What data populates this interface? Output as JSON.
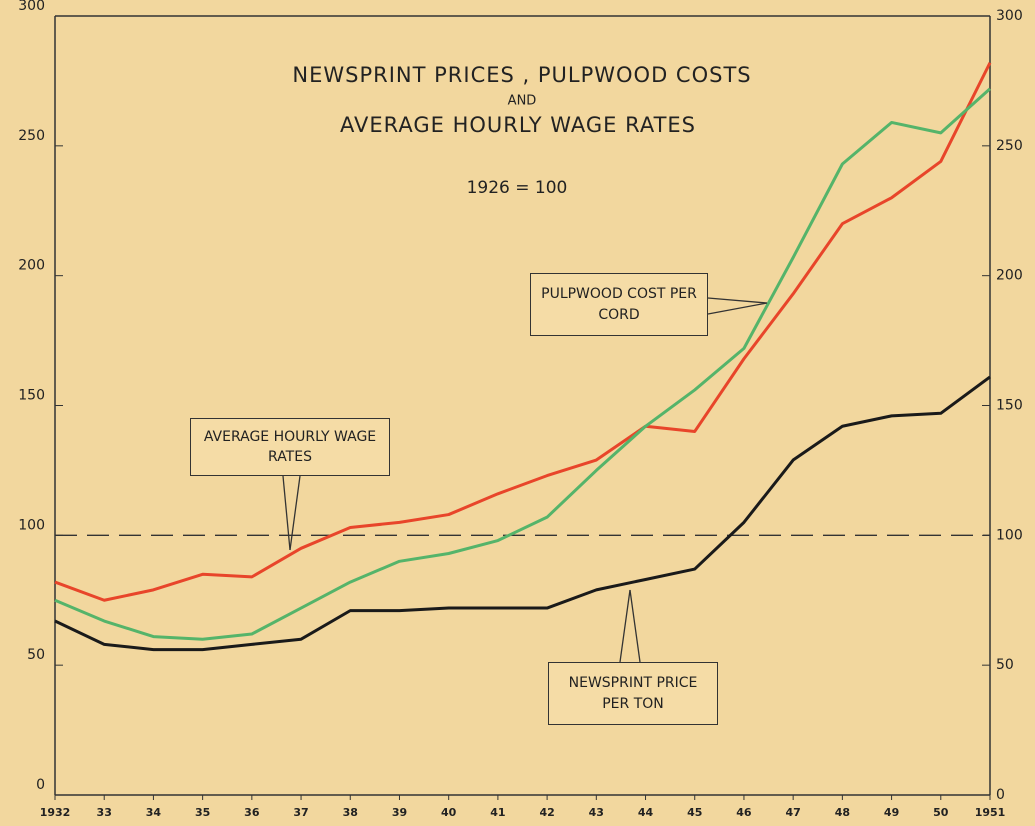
{
  "chart_data": {
    "type": "line",
    "title": [
      "NEWSPRINT PRICES , PULPWOOD COSTS",
      "AND",
      "AVERAGE HOURLY WAGE RATES"
    ],
    "subtitle": "1926 = 100",
    "categories": [
      "1932",
      "33",
      "34",
      "35",
      "36",
      "37",
      "38",
      "39",
      "40",
      "41",
      "42",
      "43",
      "44",
      "45",
      "46",
      "47",
      "48",
      "49",
      "50",
      "1951"
    ],
    "series": [
      {
        "name": "AVERAGE HOURLY WAGE RATES",
        "color": "#e8452a",
        "values": [
          82,
          75,
          79,
          85,
          84,
          95,
          103,
          105,
          108,
          116,
          123,
          129,
          142,
          140,
          168,
          193,
          220,
          230,
          244,
          282
        ]
      },
      {
        "name": "PULPWOOD COST PER CORD",
        "color": "#55b46a",
        "values": [
          75,
          67,
          61,
          60,
          62,
          72,
          82,
          90,
          93,
          98,
          107,
          125,
          142,
          156,
          172,
          207,
          243,
          259,
          255,
          272
        ]
      },
      {
        "name": "NEWSPRINT PRICE PER TON",
        "color": "#1a1a1a",
        "values": [
          67,
          58,
          56,
          56,
          58,
          60,
          71,
          71,
          72,
          72,
          72,
          79,
          83,
          87,
          105,
          129,
          142,
          146,
          147,
          161
        ]
      }
    ],
    "reference_line": 100,
    "ylim": [
      0,
      300
    ],
    "yticks": [
      0,
      50,
      100,
      150,
      200,
      250,
      300
    ],
    "y2lim": [
      0,
      300
    ],
    "y2ticks": [
      0,
      50,
      100,
      150,
      200,
      250,
      300
    ]
  }
}
